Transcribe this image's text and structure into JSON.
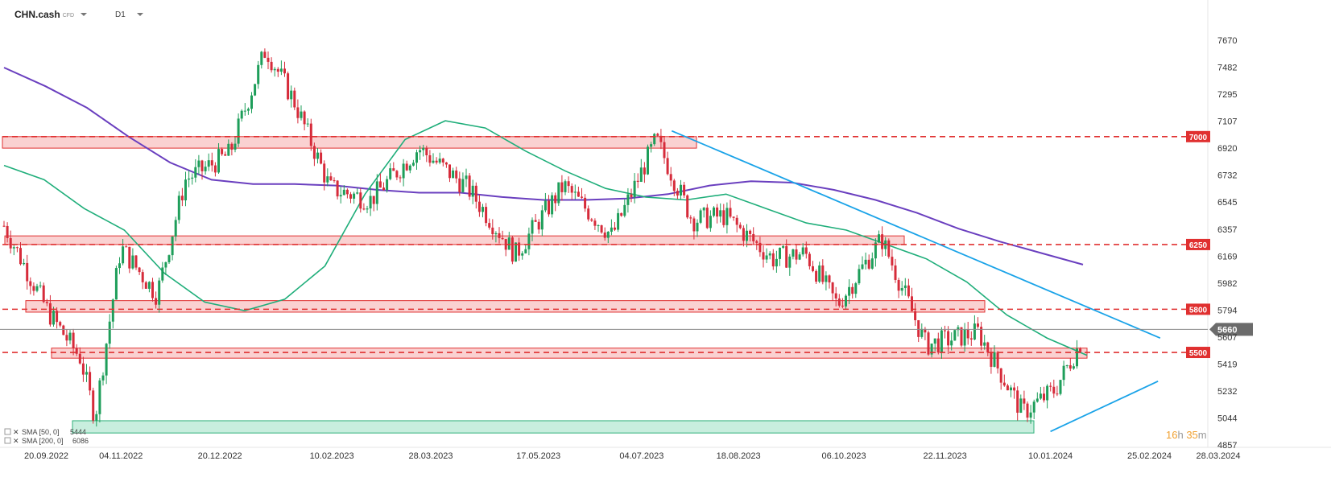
{
  "header": {
    "symbol": "CHN.cash",
    "symbol_sub": "CFD",
    "timeframe": "D1"
  },
  "chart_data": {
    "type": "candlestick",
    "title": "",
    "x_ticks": [
      "20.09.2022",
      "04.11.2022",
      "20.12.2022",
      "10.02.2023",
      "28.03.2023",
      "17.05.2023",
      "04.07.2023",
      "18.08.2023",
      "06.10.2023",
      "22.11.2023",
      "10.01.2024",
      "25.02.2024",
      "28.03.2024"
    ],
    "y_ticks": [
      7670,
      7482,
      7295,
      7107,
      6920,
      6732,
      6545,
      6357,
      6169,
      5982,
      5794,
      5607,
      5419,
      5232,
      5044,
      4857
    ],
    "ylim": [
      4857,
      7670
    ],
    "last_price": 5660,
    "price_levels": [
      7000,
      6250,
      5800,
      5500
    ],
    "resistance_zones": [
      {
        "label": "7000",
        "from": 6920,
        "to": 7000
      },
      {
        "label": "6250",
        "from": 6250,
        "to": 6310
      },
      {
        "label": "5800",
        "from": 5780,
        "to": 5860
      },
      {
        "label": "5500",
        "from": 5460,
        "to": 5530
      }
    ],
    "support_zone": {
      "from": 4940,
      "to": 5025
    },
    "trendlines": [
      {
        "name": "downtrend",
        "from": [
          "2023-07-18",
          7040
        ],
        "to": [
          "2024-03-01",
          5600
        ]
      },
      {
        "name": "uptrend",
        "from": [
          "2024-01-10",
          4950
        ],
        "to": [
          "2024-02-29",
          5300
        ]
      }
    ],
    "sma50": [
      6800,
      6700,
      6500,
      6350,
      6050,
      5850,
      5790,
      5870,
      6100,
      6600,
      6980,
      7110,
      7060,
      6900,
      6760,
      6640,
      6580,
      6560,
      6600,
      6500,
      6400,
      6350,
      6250,
      6150,
      5990,
      5760,
      5600,
      5480
    ],
    "sma200": [
      7480,
      7350,
      7200,
      7000,
      6820,
      6700,
      6670,
      6670,
      6660,
      6630,
      6610,
      6610,
      6580,
      6560,
      6560,
      6570,
      6600,
      6660,
      6690,
      6680,
      6630,
      6560,
      6470,
      6360,
      6270,
      6190,
      6110
    ],
    "legend": [
      {
        "label": "SMA [50, 0]",
        "value": "5444"
      },
      {
        "label": "SMA [200, 0]",
        "value": "6086"
      }
    ],
    "timer": {
      "hours": "16",
      "h_unit": "h",
      "minutes": "35",
      "m_unit": "m"
    },
    "colors": {
      "up": "#1e9e5a",
      "down": "#d62b3a",
      "sma50": "#1fae7a",
      "sma200": "#6a3fbf",
      "trend": "#1aa3e8",
      "level": "#e03030",
      "zone_fill": "#f9c9c9",
      "support_fill": "#c8eede"
    }
  }
}
